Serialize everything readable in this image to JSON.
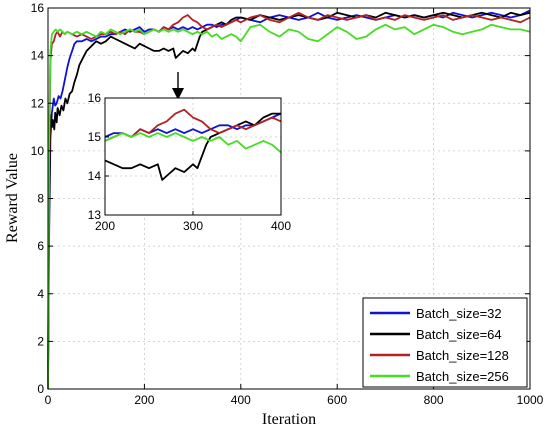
{
  "chart_data": {
    "type": "line",
    "xlabel": "Iteration",
    "ylabel": "Reward Value",
    "xlim": [
      0,
      1000
    ],
    "ylim": [
      0,
      16
    ],
    "xticks": [
      "0",
      "200",
      "400",
      "600",
      "800",
      "1000"
    ],
    "yticks": [
      "0",
      "2",
      "4",
      "6",
      "8",
      "10",
      "12",
      "14",
      "16"
    ],
    "grid": true,
    "legend_position": "bottom-right",
    "series": [
      {
        "name": "Batch_size=32",
        "color": "#1010d8",
        "x": [
          0,
          2,
          5,
          8,
          12,
          15,
          18,
          22,
          26,
          30,
          35,
          40,
          45,
          50,
          55,
          60,
          65,
          70,
          80,
          90,
          100,
          110,
          120,
          130,
          140,
          150,
          160,
          170,
          180,
          190,
          200,
          210,
          220,
          230,
          240,
          250,
          260,
          270,
          280,
          290,
          300,
          310,
          320,
          330,
          340,
          350,
          360,
          370,
          380,
          390,
          400,
          420,
          440,
          460,
          480,
          500,
          520,
          540,
          560,
          580,
          600,
          620,
          640,
          660,
          680,
          700,
          720,
          740,
          760,
          780,
          800,
          820,
          840,
          860,
          880,
          900,
          920,
          940,
          960,
          980,
          1000
        ],
        "values": [
          0,
          6,
          10.5,
          11.6,
          12.2,
          11.9,
          12.0,
          12.3,
          12.2,
          12.5,
          13.0,
          13.5,
          13.9,
          14.2,
          14.5,
          14.6,
          14.6,
          14.6,
          14.7,
          14.6,
          14.7,
          14.8,
          14.8,
          14.9,
          14.9,
          15.0,
          15.1,
          15.0,
          15.1,
          15.2,
          15.0,
          15.1,
          15.1,
          15.0,
          15.2,
          15.1,
          15.2,
          15.1,
          15.2,
          15.1,
          15.2,
          15.1,
          15.2,
          15.3,
          15.3,
          15.2,
          15.3,
          15.3,
          15.4,
          15.5,
          15.6,
          15.5,
          15.4,
          15.6,
          15.7,
          15.6,
          15.5,
          15.6,
          15.8,
          15.6,
          15.5,
          15.6,
          15.7,
          15.6,
          15.5,
          15.6,
          15.7,
          15.6,
          15.7,
          15.6,
          15.7,
          15.6,
          15.8,
          15.7,
          15.6,
          15.7,
          15.8,
          15.7,
          15.6,
          15.7,
          15.9
        ]
      },
      {
        "name": "Batch_size=64",
        "color": "#000000",
        "x": [
          0,
          2,
          5,
          8,
          10,
          13,
          15,
          18,
          20,
          24,
          28,
          32,
          36,
          40,
          45,
          50,
          55,
          60,
          65,
          70,
          80,
          90,
          100,
          110,
          120,
          130,
          140,
          150,
          160,
          170,
          180,
          190,
          200,
          210,
          220,
          230,
          240,
          250,
          260,
          265,
          270,
          280,
          290,
          300,
          305,
          310,
          315,
          320,
          330,
          340,
          350,
          360,
          370,
          380,
          390,
          400,
          420,
          440,
          460,
          480,
          500,
          520,
          540,
          560,
          580,
          600,
          620,
          640,
          660,
          680,
          700,
          720,
          740,
          760,
          780,
          800,
          820,
          840,
          860,
          880,
          900,
          920,
          940,
          960,
          980,
          1000
        ],
        "values": [
          0,
          7,
          11.5,
          11.0,
          11.3,
          10.9,
          11.6,
          11.2,
          11.8,
          11.5,
          11.9,
          11.7,
          12.2,
          12.0,
          12.4,
          12.5,
          12.9,
          13.2,
          13.6,
          13.8,
          14.2,
          14.4,
          14.6,
          14.5,
          14.6,
          14.8,
          14.7,
          14.6,
          14.5,
          14.4,
          14.3,
          14.5,
          14.4,
          14.3,
          14.2,
          14.2,
          14.3,
          14.2,
          14.3,
          13.9,
          14.0,
          14.2,
          14.1,
          14.3,
          14.2,
          14.5,
          14.8,
          15.0,
          15.1,
          15.2,
          15.3,
          15.4,
          15.3,
          15.5,
          15.6,
          15.6,
          15.5,
          15.7,
          15.6,
          15.5,
          15.6,
          15.7,
          15.6,
          15.5,
          15.6,
          15.8,
          15.7,
          15.6,
          15.7,
          15.6,
          15.8,
          15.7,
          15.6,
          15.7,
          15.6,
          15.7,
          15.8,
          15.7,
          15.6,
          15.7,
          15.8,
          15.7,
          15.6,
          15.8,
          15.7,
          15.8
        ]
      },
      {
        "name": "Batch_size=128",
        "color": "#b22222",
        "x": [
          0,
          2,
          5,
          8,
          12,
          16,
          20,
          25,
          30,
          35,
          40,
          50,
          60,
          70,
          80,
          90,
          100,
          110,
          120,
          130,
          140,
          150,
          160,
          170,
          180,
          190,
          200,
          210,
          220,
          230,
          240,
          250,
          260,
          270,
          280,
          290,
          300,
          310,
          320,
          330,
          340,
          350,
          360,
          370,
          380,
          390,
          400,
          420,
          440,
          460,
          480,
          500,
          520,
          540,
          560,
          580,
          600,
          620,
          640,
          660,
          680,
          700,
          720,
          740,
          760,
          780,
          800,
          820,
          840,
          860,
          880,
          900,
          920,
          940,
          960,
          980,
          1000
        ],
        "values": [
          0,
          9,
          13.8,
          14.5,
          14.6,
          14.9,
          15.0,
          14.8,
          15.0,
          14.9,
          15.0,
          14.9,
          14.8,
          14.9,
          14.8,
          14.7,
          14.8,
          14.9,
          14.9,
          15.0,
          14.9,
          15.0,
          14.9,
          15.1,
          15.0,
          15.0,
          14.9,
          15.0,
          15.1,
          15.0,
          15.2,
          15.1,
          15.3,
          15.4,
          15.6,
          15.7,
          15.5,
          15.4,
          15.2,
          15.1,
          15.2,
          15.3,
          15.2,
          15.3,
          15.4,
          15.5,
          15.4,
          15.6,
          15.7,
          15.5,
          15.4,
          15.6,
          15.8,
          15.6,
          15.5,
          15.7,
          15.6,
          15.5,
          15.6,
          15.7,
          15.5,
          15.6,
          15.5,
          15.7,
          15.6,
          15.5,
          15.6,
          15.7,
          15.5,
          15.6,
          15.7,
          15.6,
          15.5,
          15.6,
          15.5,
          15.4,
          15.6
        ]
      },
      {
        "name": "Batch_size=256",
        "color": "#44dd22",
        "x": [
          0,
          2,
          5,
          8,
          12,
          16,
          20,
          25,
          30,
          35,
          40,
          50,
          60,
          70,
          80,
          90,
          100,
          110,
          120,
          130,
          140,
          150,
          160,
          170,
          180,
          190,
          200,
          210,
          220,
          230,
          240,
          250,
          260,
          270,
          280,
          290,
          300,
          310,
          320,
          330,
          340,
          350,
          360,
          370,
          380,
          390,
          400,
          420,
          440,
          460,
          480,
          500,
          520,
          540,
          560,
          580,
          600,
          620,
          640,
          660,
          680,
          700,
          720,
          740,
          760,
          780,
          800,
          820,
          840,
          860,
          880,
          900,
          920,
          940,
          960,
          980,
          1000
        ],
        "values": [
          0,
          10,
          14.2,
          14.9,
          15.0,
          15.1,
          15.0,
          15.1,
          15.0,
          14.9,
          15.0,
          14.9,
          15.0,
          14.9,
          15.0,
          14.9,
          14.8,
          15.0,
          14.9,
          15.1,
          15.0,
          14.9,
          15.0,
          15.1,
          15.0,
          15.1,
          14.9,
          15.0,
          15.1,
          15.0,
          15.1,
          15.0,
          15.1,
          15.0,
          15.1,
          15.0,
          14.9,
          15.0,
          14.9,
          15.0,
          14.8,
          14.9,
          14.7,
          14.8,
          14.9,
          14.8,
          14.6,
          15.2,
          15.3,
          15.0,
          14.8,
          15.1,
          15.0,
          14.7,
          14.6,
          14.9,
          15.2,
          15.0,
          14.7,
          14.8,
          15.1,
          15.3,
          15.1,
          15.2,
          14.9,
          15.1,
          15.3,
          15.2,
          15.0,
          14.9,
          15.0,
          15.1,
          15.3,
          15.2,
          15.1,
          15.1,
          15.0
        ]
      }
    ],
    "inset": {
      "xlim": [
        200,
        400
      ],
      "ylim": [
        13,
        16
      ],
      "xticks": [
        "200",
        "300",
        "400"
      ],
      "yticks": [
        "13",
        "14",
        "15",
        "16"
      ],
      "grid": true,
      "series_source": "zoom of main series over x 200-400",
      "arrow_from_x": 270,
      "arrow_from_y": 14.2
    }
  }
}
